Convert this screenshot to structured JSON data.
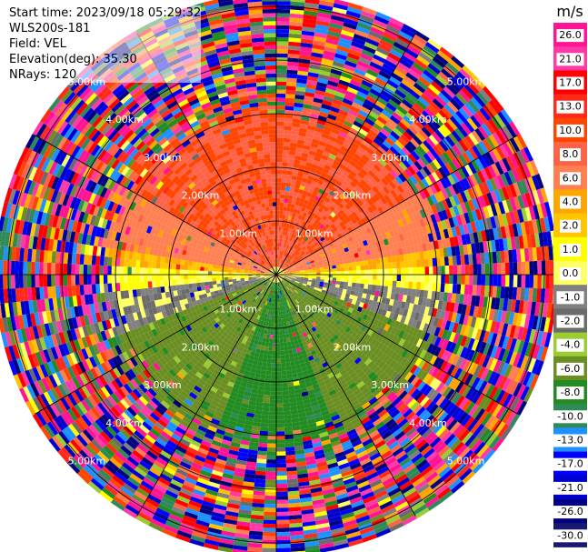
{
  "info": {
    "start_time": "Start time: 2023/09/18 05:29:32",
    "instrument": "WLS200s-181",
    "field": "Field: VEL",
    "elevation": "Elevation(deg): 35.30",
    "nrays": "NRays: 120"
  },
  "chart_data": {
    "type": "ppi-heatmap",
    "field": "VEL",
    "units": "m/s",
    "n_rays": 120,
    "elevation_deg": 35.3,
    "range_rings_km": [
      1.0,
      2.0,
      3.0,
      4.0,
      5.0
    ],
    "range_labels": [
      "1.00km",
      "2.00km",
      "3.00km",
      "4.00km",
      "5.00km"
    ],
    "spoke_angles_deg": [
      0,
      30,
      60,
      90,
      120,
      150,
      180,
      210,
      240,
      270,
      300,
      330
    ],
    "colorbar": {
      "title": "m/s",
      "levels": [
        26.0,
        21.0,
        17.0,
        13.0,
        10.0,
        8.0,
        6.0,
        4.0,
        2.0,
        1.0,
        0.0,
        -1.0,
        -2.0,
        -4.0,
        -6.0,
        -8.0,
        -10.0,
        -13.0,
        -17.0,
        -21.0,
        -26.0,
        -30.0
      ],
      "level_labels": [
        "26.0",
        "21.0",
        "17.0",
        "13.0",
        "10.0",
        "8.0",
        "6.0",
        "4.0",
        "2.0",
        "1.0",
        "0.0",
        "-1.0",
        "-2.0",
        "-4.0",
        "-6.0",
        "-8.0",
        "-10.0",
        "-13.0",
        "-17.0",
        "-21.0",
        "-26.0",
        "-30.0"
      ],
      "colors": [
        "#ff1493",
        "#ff3aa8",
        "#ff0000",
        "#ff2a1a",
        "#ff4500",
        "#ff6347",
        "#ff7f50",
        "#ffa500",
        "#ffc500",
        "#ffff00",
        "#ffff66",
        "#808080",
        "#6b6b6b",
        "#9acd32",
        "#6b8e23",
        "#228b22",
        "#2e8b57",
        "#1e90ff",
        "#0000ff",
        "#0000cd",
        "#000080",
        "#191970"
      ]
    },
    "pattern": {
      "near_field_max_km": 3.4,
      "description_sectors": [
        {
          "bearing_from": 300,
          "bearing_to": 60,
          "velocity": 8.0
        },
        {
          "bearing_from": 60,
          "bearing_to": 80,
          "velocity": 5.0
        },
        {
          "bearing_from": 280,
          "bearing_to": 300,
          "velocity": 5.0
        },
        {
          "bearing_from": 80,
          "bearing_to": 88,
          "velocity": 2.0
        },
        {
          "bearing_from": 272,
          "bearing_to": 280,
          "velocity": 2.0
        },
        {
          "bearing_from": 88,
          "bearing_to": 96,
          "velocity": 0.0
        },
        {
          "bearing_from": 264,
          "bearing_to": 272,
          "velocity": 0.0
        },
        {
          "bearing_from": 96,
          "bearing_to": 110,
          "velocity": -1.5
        },
        {
          "bearing_from": 250,
          "bearing_to": 264,
          "velocity": -1.5
        },
        {
          "bearing_from": 110,
          "bearing_to": 160,
          "velocity": -7.0
        },
        {
          "bearing_from": 200,
          "bearing_to": 250,
          "velocity": -7.0
        },
        {
          "bearing_from": 160,
          "bearing_to": 200,
          "velocity": -9.0
        }
      ]
    }
  }
}
